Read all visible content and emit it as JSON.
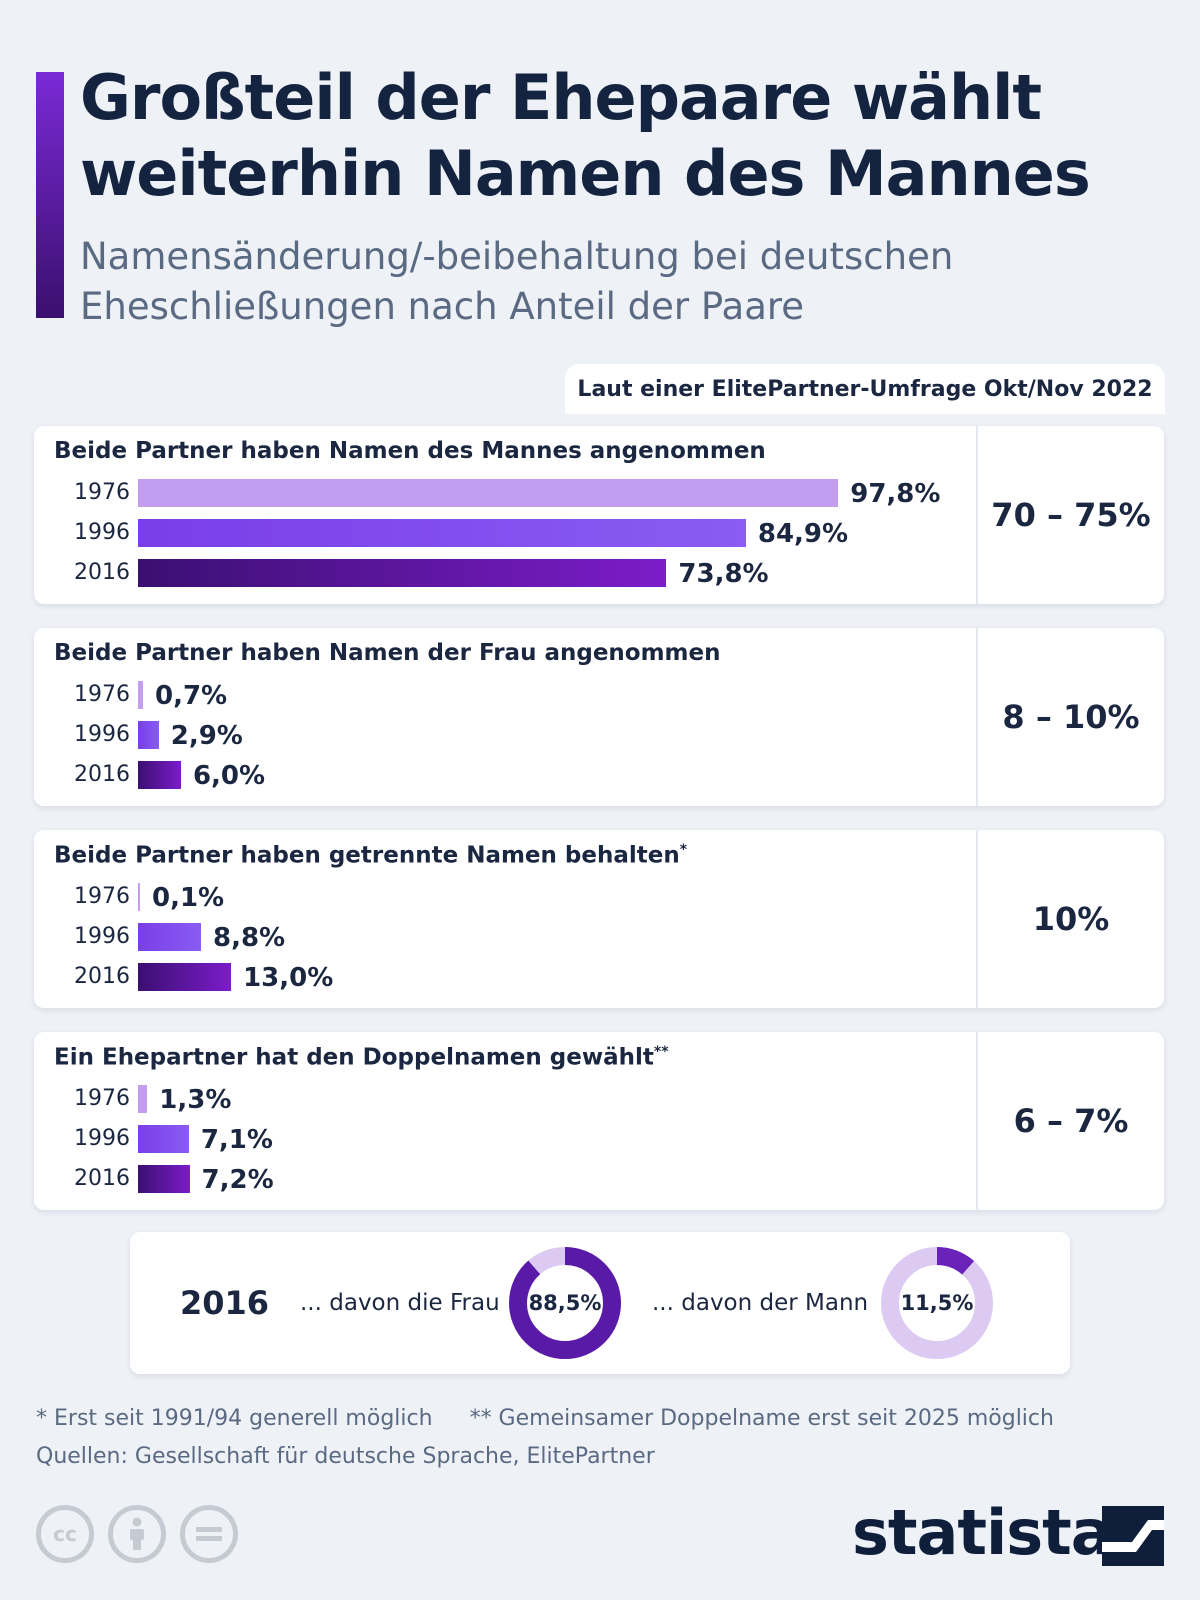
{
  "title": "Großteil der Ehepaare wählt weiterhin Namen des Mannes",
  "subtitle": "Namensänderung/-beibehaltung bei deutschen Eheschließungen nach Anteil der Paare",
  "survey_header": "Laut einer ElitePartner-Umfrage Okt/Nov 2022",
  "chart_data": {
    "type": "bar",
    "orientation": "horizontal",
    "unit": "%",
    "series_years": [
      "1976",
      "1996",
      "2016"
    ],
    "groups": [
      {
        "title": "Beide Partner haben Namen des Mannes angenommen",
        "footnote_mark": "",
        "years": [
          "1976",
          "1996",
          "2016"
        ],
        "values": [
          97.8,
          84.9,
          73.8
        ],
        "labels": [
          "97,8%",
          "84,9%",
          "73,8%"
        ],
        "survey_2022": "70 – 75%"
      },
      {
        "title": "Beide Partner haben Namen der Frau angenommen",
        "footnote_mark": "",
        "years": [
          "1976",
          "1996",
          "2016"
        ],
        "values": [
          0.7,
          2.9,
          6.0
        ],
        "labels": [
          "0,7%",
          "2,9%",
          "6,0%"
        ],
        "survey_2022": "8 – 10%"
      },
      {
        "title": "Beide Partner haben getrennte Namen behalten",
        "footnote_mark": "*",
        "years": [
          "1976",
          "1996",
          "2016"
        ],
        "values": [
          0.1,
          8.8,
          13.0
        ],
        "labels": [
          "0,1%",
          "8,8%",
          "13,0%"
        ],
        "survey_2022": "10%"
      },
      {
        "title": "Ein Ehepartner hat den Doppelnamen gewählt",
        "footnote_mark": "**",
        "years": [
          "1976",
          "1996",
          "2016"
        ],
        "values": [
          1.3,
          7.1,
          7.2
        ],
        "labels": [
          "1,3%",
          "7,1%",
          "7,2%"
        ],
        "survey_2022": "6 – 7%"
      }
    ],
    "donuts": {
      "year": "2016",
      "items": [
        {
          "label": "... davon die Frau",
          "value": 88.5,
          "text": "88,5%",
          "color": "#5a1aa8",
          "track": "#dccaf3"
        },
        {
          "label": "... davon der Mann",
          "value": 11.5,
          "text": "11,5%",
          "color": "#6a22b8",
          "track": "#dccaf3"
        }
      ]
    },
    "colors": {
      "1976": "#c39ef0",
      "1996": "#7f47ec",
      "2016": "#5a17a6"
    },
    "xlim": [
      0,
      100
    ]
  },
  "footnotes": {
    "note1": "* Erst seit 1991/94 generell möglich",
    "note2": "** Gemeinsamer Doppelname erst seit 2025 möglich",
    "sources": "Quellen: Gesellschaft für deutsche Sprache, ElitePartner"
  },
  "license_icons": [
    "cc-icon",
    "by-icon",
    "nd-icon"
  ],
  "brand": "statista"
}
